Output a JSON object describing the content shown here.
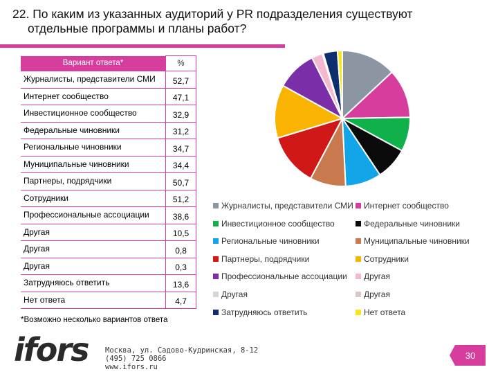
{
  "title": {
    "line1": "22. По каким из указанных аудиторий у PR подразделения существуют",
    "line2": "отдельные программы и планы работ?"
  },
  "table": {
    "header_answer": "Вариант ответа*",
    "header_percent": "%",
    "rows": [
      {
        "label": "Журналисты, представители СМИ",
        "value": "52,7"
      },
      {
        "label": "Интернет сообщество",
        "value": "47,1"
      },
      {
        "label": "Инвестиционное сообщество",
        "value": "32,9"
      },
      {
        "label": "Федеральные чиновники",
        "value": "31,2"
      },
      {
        "label": "Региональные чиновники",
        "value": "34,7"
      },
      {
        "label": "Муниципальные чиновники",
        "value": "34,4"
      },
      {
        "label": "Партнеры, подрядчики",
        "value": "50,7"
      },
      {
        "label": "Сотрудники",
        "value": "51,2"
      },
      {
        "label": "Профессиональные ассоциации",
        "value": "38,6"
      },
      {
        "label": "Другая",
        "value": "10,5"
      },
      {
        "label": "Другая",
        "value": "0,8"
      },
      {
        "label": "Другая",
        "value": "0,3"
      },
      {
        "label": "Затрудняюсь ответить",
        "value": "13,6"
      },
      {
        "label": "Нет ответа",
        "value": "4,7"
      }
    ]
  },
  "note": "*Возможно несколько вариантов ответа",
  "footer": {
    "logo_text": "ifors",
    "address_line1": "Москва, ул. Садово-Кудринская, 8-12",
    "address_line2": "(495) 725 0866",
    "address_line3": "www.ifors.ru",
    "page_number": "30"
  },
  "chart_data": {
    "type": "pie",
    "categories": [
      "Журналисты, представители СМИ",
      "Интернет сообщество",
      "Инвестиционное сообщество",
      "Федеральные чиновники",
      "Региональные чиновники",
      "Муниципальные чиновники",
      "Партнеры, подрядчики",
      "Сотрудники",
      "Профессиональные ассоциации",
      "Другая",
      "Другая",
      "Другая",
      "Затрудняюсь ответить",
      "Нет ответа"
    ],
    "values": [
      52.7,
      47.1,
      32.9,
      31.2,
      34.7,
      34.4,
      50.7,
      51.2,
      38.6,
      10.5,
      0.8,
      0.3,
      13.6,
      4.7
    ],
    "colors": [
      "#8c96a3",
      "#d63d9c",
      "#10b04a",
      "#0a0a0a",
      "#12a6e8",
      "#c87a4e",
      "#d01818",
      "#f8b400",
      "#7a2ea8",
      "#f4b8d0",
      "#d6d6d6",
      "#d9c8c8",
      "#0f2e6e",
      "#f4e81a"
    ],
    "legend_position": "bottom",
    "legend_labels": [
      "Журналисты, представители СМИ",
      "Интернет сообщество",
      "Инвестиционное сообщество",
      "Федеральные чиновники",
      "Региональные чиновники",
      "Муниципальные чиновники",
      "Партнеры, подрядчики",
      "Сотрудники",
      "Профессиональные ассоциации",
      "Другая",
      "Другая",
      "Другая",
      "Затрудняюсь ответить",
      "Нет ответа"
    ]
  }
}
